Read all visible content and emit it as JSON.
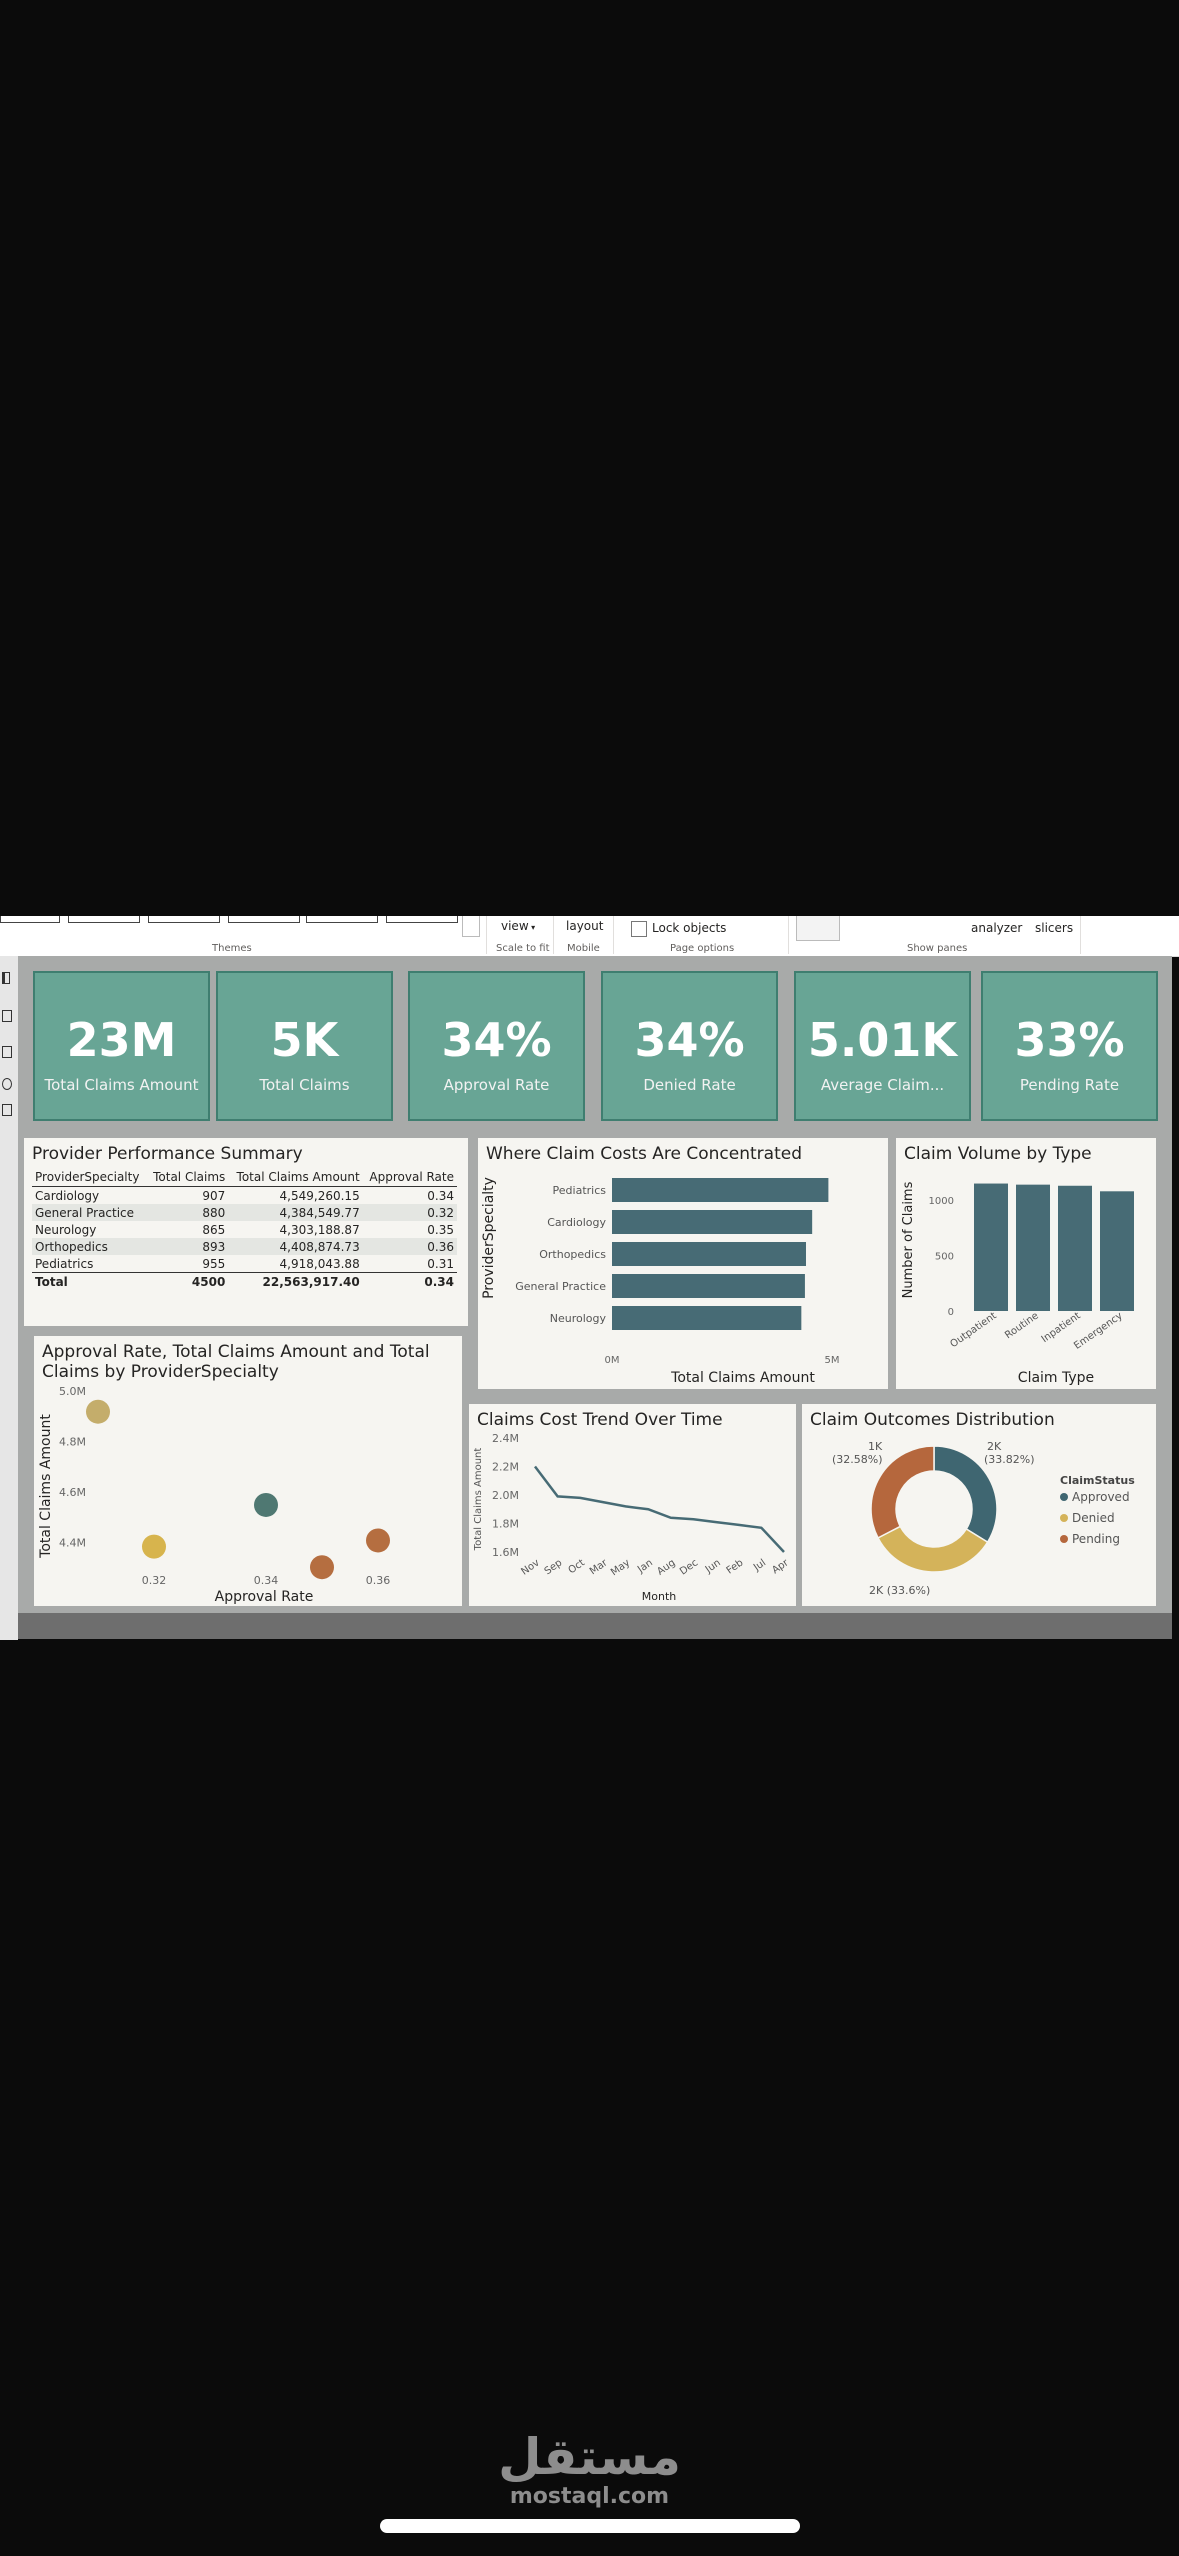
{
  "ribbon": {
    "view_label": "view",
    "scale_label": "Scale to fit",
    "layout_label": "layout",
    "mobile_label": "Mobile",
    "lock_label": "Lock objects",
    "page_options_label": "Page options",
    "themes_label": "Themes",
    "analyzer_label": "analyzer",
    "slicers_label": "slicers",
    "show_panes_label": "Show panes"
  },
  "kpis": [
    {
      "value": "23M",
      "label": "Total Claims Amount"
    },
    {
      "value": "5K",
      "label": "Total Claims"
    },
    {
      "value": "34%",
      "label": "Approval Rate"
    },
    {
      "value": "34%",
      "label": "Denied Rate"
    },
    {
      "value": "5.01K",
      "label": "Average Claim..."
    },
    {
      "value": "33%",
      "label": "Pending Rate"
    }
  ],
  "performance": {
    "title": "Provider Performance Summary",
    "columns": [
      "ProviderSpecialty",
      "Total Claims",
      "Total Claims Amount",
      "Approval Rate"
    ],
    "rows": [
      [
        "Cardiology",
        "907",
        "4,549,260.15",
        "0.34"
      ],
      [
        "General Practice",
        "880",
        "4,384,549.77",
        "0.32"
      ],
      [
        "Neurology",
        "865",
        "4,303,188.87",
        "0.35"
      ],
      [
        "Orthopedics",
        "893",
        "4,408,874.73",
        "0.36"
      ],
      [
        "Pediatrics",
        "955",
        "4,918,043.88",
        "0.31"
      ]
    ],
    "total": [
      "Total",
      "4500",
      "22,563,917.40",
      "0.34"
    ]
  },
  "chart_data": [
    {
      "id": "cost_concentration",
      "type": "bar",
      "orientation": "horizontal",
      "title": "Where Claim Costs Are Concentrated",
      "xlabel": "Total Claims Amount",
      "ylabel": "ProviderSpecialty",
      "categories": [
        "Pediatrics",
        "Cardiology",
        "Orthopedics",
        "General Practice",
        "Neurology"
      ],
      "values": [
        4918043.88,
        4549260.15,
        4408874.73,
        4384549.77,
        4303188.87
      ],
      "xlim": [
        0,
        5000000
      ],
      "xticks": [
        "0M",
        "5M"
      ],
      "color": "#476b75"
    },
    {
      "id": "claim_volume_type",
      "type": "bar",
      "title": "Claim Volume by Type",
      "xlabel": "Claim Type",
      "ylabel": "Number of Claims",
      "categories": [
        "Outpatient",
        "Routine",
        "Inpatient",
        "Emergency"
      ],
      "values": [
        1150,
        1140,
        1130,
        1080
      ],
      "ylim": [
        0,
        1200
      ],
      "yticks": [
        "0",
        "500",
        "1000"
      ],
      "color": "#476b75"
    },
    {
      "id": "approval_scatter",
      "type": "scatter",
      "title": "Approval Rate, Total Claims Amount and Total Claims by ProviderSpecialty",
      "xlabel": "Approval Rate",
      "ylabel": "Total Claims Amount",
      "xlim": [
        0.31,
        0.37
      ],
      "ylim": [
        4300000,
        5000000
      ],
      "xticks": [
        "0.32",
        "0.34",
        "0.36"
      ],
      "yticks": [
        "4.4M",
        "4.6M",
        "4.8M",
        "5.0M"
      ],
      "points": [
        {
          "x": 0.31,
          "y": 4918043.88,
          "color": "#c4ad6b"
        },
        {
          "x": 0.32,
          "y": 4384549.77,
          "color": "#d7b44d"
        },
        {
          "x": 0.34,
          "y": 4549260.15,
          "color": "#4f7872"
        },
        {
          "x": 0.35,
          "y": 4303188.87,
          "color": "#b56e40"
        },
        {
          "x": 0.36,
          "y": 4408874.73,
          "color": "#b56e40"
        }
      ]
    },
    {
      "id": "cost_trend",
      "type": "line",
      "title": "Claims Cost Trend Over Time",
      "xlabel": "Month",
      "ylabel": "Total Claims Amount",
      "x": [
        "Nov",
        "Sep",
        "Oct",
        "Mar",
        "May",
        "Jan",
        "Aug",
        "Dec",
        "Jun",
        "Feb",
        "Jul",
        "Apr"
      ],
      "values": [
        2200000,
        1990000,
        1980000,
        1950000,
        1920000,
        1900000,
        1840000,
        1830000,
        1810000,
        1790000,
        1770000,
        1600000
      ],
      "ylim": [
        1600000,
        2400000
      ],
      "yticks": [
        "1.6M",
        "1.8M",
        "2.0M",
        "2.2M",
        "2.4M"
      ],
      "color": "#476b75"
    },
    {
      "id": "claim_outcomes",
      "type": "pie",
      "donut": true,
      "title": "Claim Outcomes Distribution",
      "legend_title": "ClaimStatus",
      "legend_position": "right",
      "slices": [
        {
          "label": "Approved",
          "value": 33.82,
          "color": "#3f6671"
        },
        {
          "label": "Denied",
          "value": 33.6,
          "color": "#d4b35a"
        },
        {
          "label": "Pending",
          "value": 32.58,
          "color": "#b5673d"
        }
      ],
      "data_labels": [
        {
          "value": "2K",
          "pct": "(33.82%)"
        },
        {
          "value": "2K",
          "pct": "(33.6%)"
        },
        {
          "value": "1K",
          "pct": "(32.58%)"
        }
      ]
    }
  ],
  "watermark": {
    "arabic": "مستقل",
    "latin": "mostaql.com"
  }
}
